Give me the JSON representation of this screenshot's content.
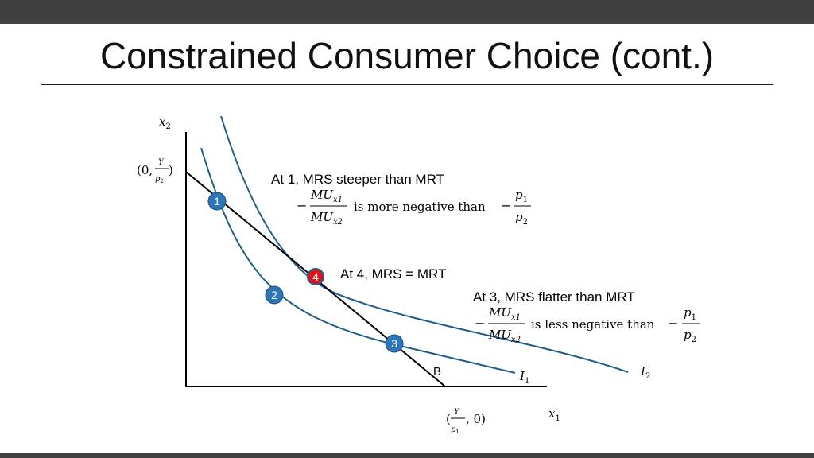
{
  "title": "Constrained Consumer Choice (cont.)",
  "axes": {
    "y_var": "x",
    "y_sub": "2",
    "x_var": "x",
    "x_sub": "1",
    "y_intercept_open": "(0,",
    "y_intercept_num": "Y",
    "y_intercept_den_var": "p",
    "y_intercept_den_sub": "2",
    "y_intercept_close": ")",
    "x_intercept_open": "(",
    "x_intercept_num": "Y",
    "x_intercept_den_var": "p",
    "x_intercept_den_sub": "1",
    "x_intercept_close": ", 0)"
  },
  "curves": {
    "budget_label": "B",
    "i1_var": "I",
    "i1_sub": "1",
    "i2_var": "I",
    "i2_sub": "2"
  },
  "points": [
    {
      "label": "1",
      "color": "#2e75b6"
    },
    {
      "label": "2",
      "color": "#2e75b6"
    },
    {
      "label": "3",
      "color": "#2e75b6"
    },
    {
      "label": "4",
      "color": "#e0151b"
    }
  ],
  "annotations": {
    "a1_heading": "At 1, MRS steeper than MRT",
    "a1_minus": "−",
    "a1_num": "MU",
    "a1_num_sub": "x1",
    "a1_den": "MU",
    "a1_den_sub": "x2",
    "a1_text": "is more negative than",
    "a1_minus2": "−",
    "a1_p_num": "p",
    "a1_p_num_sub": "1",
    "a1_p_den": "p",
    "a1_p_den_sub": "2",
    "a4_heading": "At 4, MRS = MRT",
    "a3_heading": "At 3, MRS flatter than MRT",
    "a3_minus": "−",
    "a3_num": "MU",
    "a3_num_sub": "x1",
    "a3_den": "MU",
    "a3_den_sub": "x2",
    "a3_text": "is less negative than",
    "a3_minus2": "−",
    "a3_p_num": "p",
    "a3_p_num_sub": "1",
    "a3_p_den": "p",
    "a3_p_den_sub": "2"
  },
  "colors": {
    "curve": "#1f5f8b",
    "point_fill": "#2e75b6",
    "point_highlight": "#e0151b",
    "axis": "#000000"
  }
}
